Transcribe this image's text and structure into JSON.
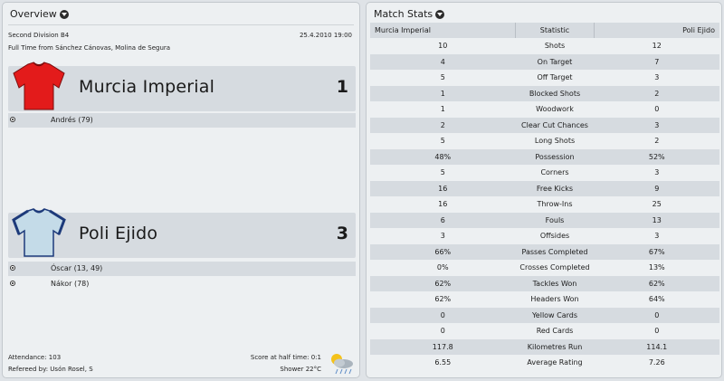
{
  "overview": {
    "title": "Overview",
    "competition": "Second Division B4",
    "date": "25.4.2010 19:00",
    "venue": "Full Time from Sánchez Cánovas, Molina de Segura",
    "attendance": "Attendance: 103",
    "referee": "Refereed by: Usón Rosel, S",
    "halftime": "Score at half time: 0:1",
    "weather": "Shower 22°C",
    "home": {
      "name": "Murcia Imperial",
      "score": "1",
      "shirt_color": "#e31b1b",
      "scorers": [
        "Andrés (79)"
      ]
    },
    "away": {
      "name": "Poli Ejido",
      "score": "3",
      "shirt_color": "#c4dbe8",
      "shirt_trim": "#1d3a7a",
      "scorers": [
        "Óscar (13, 49)",
        "Nákor (78)"
      ]
    }
  },
  "stats": {
    "title": "Match Stats",
    "columns": [
      "Murcia Imperial",
      "Statistic",
      "Poli Ejido"
    ],
    "rows": [
      {
        "home": "10",
        "label": "Shots",
        "away": "12"
      },
      {
        "home": "4",
        "label": "On Target",
        "away": "7"
      },
      {
        "home": "5",
        "label": "Off Target",
        "away": "3"
      },
      {
        "home": "1",
        "label": "Blocked Shots",
        "away": "2"
      },
      {
        "home": "1",
        "label": "Woodwork",
        "away": "0"
      },
      {
        "home": "2",
        "label": "Clear Cut Chances",
        "away": "3"
      },
      {
        "home": "5",
        "label": "Long Shots",
        "away": "2"
      },
      {
        "home": "48%",
        "label": "Possession",
        "away": "52%"
      },
      {
        "home": "5",
        "label": "Corners",
        "away": "3"
      },
      {
        "home": "16",
        "label": "Free Kicks",
        "away": "9"
      },
      {
        "home": "16",
        "label": "Throw-Ins",
        "away": "25"
      },
      {
        "home": "6",
        "label": "Fouls",
        "away": "13"
      },
      {
        "home": "3",
        "label": "Offsides",
        "away": "3"
      },
      {
        "home": "66%",
        "label": "Passes Completed",
        "away": "67%"
      },
      {
        "home": "0%",
        "label": "Crosses Completed",
        "away": "13%"
      },
      {
        "home": "62%",
        "label": "Tackles Won",
        "away": "62%"
      },
      {
        "home": "62%",
        "label": "Headers Won",
        "away": "64%"
      },
      {
        "home": "0",
        "label": "Yellow Cards",
        "away": "0"
      },
      {
        "home": "0",
        "label": "Red Cards",
        "away": "0"
      },
      {
        "home": "117.8",
        "label": "Kilometres Run",
        "away": "114.1"
      },
      {
        "home": "6.55",
        "label": "Average Rating",
        "away": "7.26"
      }
    ]
  }
}
